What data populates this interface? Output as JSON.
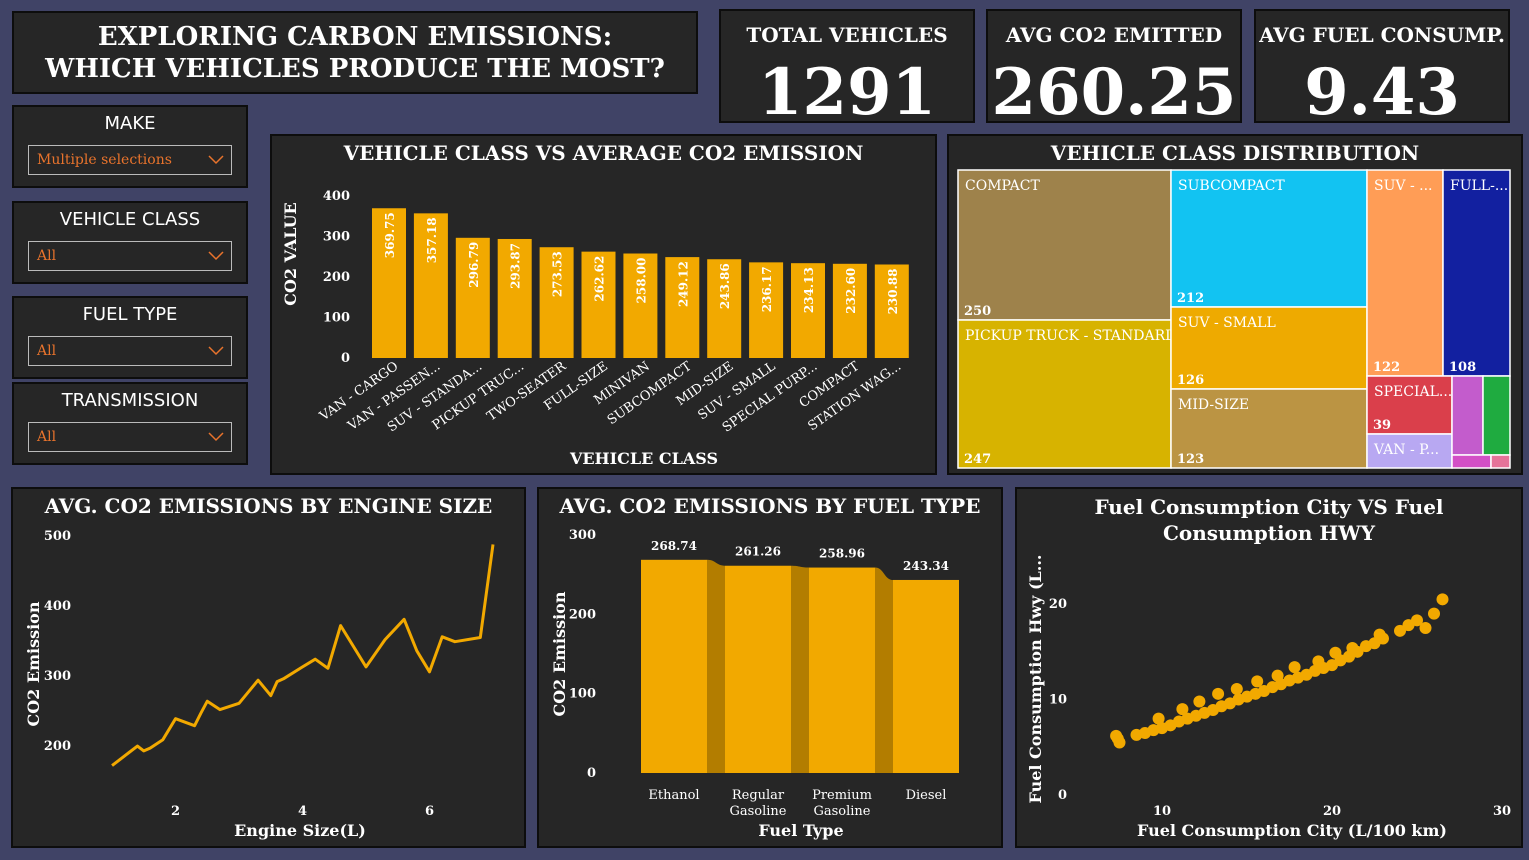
{
  "title": "EXPLORING CARBON EMISSIONS: WHICH VEHICLES PRODUCE THE MOST?",
  "kpis": {
    "total_vehicles": {
      "label": "TOTAL VEHICLES",
      "value": "1291"
    },
    "avg_co2": {
      "label": "AVG CO2 EMITTED",
      "value": "260.25"
    },
    "avg_fuel": {
      "label": "AVG FUEL CONSUMP.",
      "value": "9.43"
    }
  },
  "slicers": {
    "make": {
      "label": "MAKE",
      "value": "Multiple selections"
    },
    "vehicle_class": {
      "label": "VEHICLE CLASS",
      "value": "All"
    },
    "fuel_type": {
      "label": "FUEL TYPE",
      "value": "All"
    },
    "transmission": {
      "label": "TRANSMISSION",
      "value": "All"
    }
  },
  "colors": {
    "accent": "#f2a900",
    "panel": "#262626",
    "background": "#404366",
    "slicer_value": "#e8732c"
  },
  "chart_data": [
    {
      "type": "bar",
      "title": "VEHICLE CLASS VS AVERAGE CO2 EMISSION",
      "xlabel": "VEHICLE CLASS",
      "ylabel": "CO2 VALUE",
      "ylim": [
        0,
        400
      ],
      "yticks": [
        0,
        100,
        200,
        300,
        400
      ],
      "categories": [
        "VAN - CARGO",
        "VAN - PASSEN...",
        "SUV - STANDA...",
        "PICKUP TRUC...",
        "TWO-SEATER",
        "FULL-SIZE",
        "MINIVAN",
        "SUBCOMPACT",
        "MID-SIZE",
        "SUV - SMALL",
        "SPECIAL PURP...",
        "COMPACT",
        "STATION WAG..."
      ],
      "values": [
        369.75,
        357.18,
        296.79,
        293.87,
        273.53,
        262.62,
        258.0,
        249.12,
        243.86,
        236.17,
        234.13,
        232.6,
        230.88
      ],
      "labels": [
        "369.75",
        "357.18",
        "296.79",
        "293.87",
        "273.53",
        "262.62",
        "258.00",
        "249.12",
        "243.86",
        "236.17",
        "234.13",
        "232.60",
        "230.88"
      ]
    },
    {
      "type": "treemap",
      "title": "VEHICLE CLASS DISTRIBUTION",
      "items": [
        {
          "name": "COMPACT",
          "value": 250,
          "value_label": "250",
          "color": "#9e824b"
        },
        {
          "name": "PICKUP TRUCK - STANDARD",
          "value": 247,
          "value_label": "247",
          "color": "#d7b300"
        },
        {
          "name": "SUBCOMPACT",
          "value": 212,
          "value_label": "212",
          "color": "#12c3f2"
        },
        {
          "name": "SUV - SMALL",
          "value": 126,
          "value_label": "126",
          "color": "#eeaa00"
        },
        {
          "name": "MID-SIZE",
          "value": 123,
          "value_label": "123",
          "color": "#bb9443"
        },
        {
          "name": "SUV - ...",
          "value": 122,
          "value_label": "122",
          "color": "#ff9d56"
        },
        {
          "name": "FULL-...",
          "value": 108,
          "value_label": "108",
          "color": "#1220a0"
        },
        {
          "name": "SPECIAL...",
          "value": 39,
          "value_label": "39",
          "color": "#da3f4b"
        },
        {
          "name": "VAN - P...",
          "value": 0,
          "value_label": "",
          "color": "#b8a8f2"
        },
        {
          "name": "",
          "value": 0,
          "value_label": "",
          "color": "#c35ccc"
        },
        {
          "name": "",
          "value": 0,
          "value_label": "",
          "color": "#1fab40"
        },
        {
          "name": "",
          "value": 0,
          "value_label": "",
          "color": "#d34fc6"
        },
        {
          "name": "",
          "value": 0,
          "value_label": "",
          "color": "#e57399"
        }
      ]
    },
    {
      "type": "line",
      "title": "AVG. CO2 EMISSIONS BY ENGINE SIZE",
      "xlabel": "Engine Size(L)",
      "ylabel": "CO2 Emission",
      "xlim": [
        0.7,
        7.0
      ],
      "ylim": [
        150,
        500
      ],
      "xticks": [
        2,
        4,
        6
      ],
      "yticks": [
        200,
        300,
        400,
        500
      ],
      "x": [
        1.0,
        1.2,
        1.4,
        1.5,
        1.6,
        1.8,
        2.0,
        2.3,
        2.4,
        2.5,
        2.7,
        3.0,
        3.3,
        3.5,
        3.6,
        3.7,
        4.0,
        4.2,
        4.4,
        4.6,
        5.0,
        5.3,
        5.6,
        5.8,
        6.0,
        6.2,
        6.4,
        6.8,
        7.0
      ],
      "y": [
        172,
        186,
        200,
        193,
        197,
        209,
        239,
        229,
        247,
        264,
        252,
        261,
        294,
        272,
        292,
        296,
        313,
        324,
        311,
        372,
        313,
        352,
        381,
        336,
        306,
        356,
        349,
        355,
        488
      ]
    },
    {
      "type": "bar",
      "title": "AVG. CO2 EMISSIONS BY FUEL TYPE",
      "xlabel": "Fuel Type",
      "ylabel": "CO2 Emission",
      "ylim": [
        0,
        300
      ],
      "yticks": [
        0,
        100,
        200,
        300
      ],
      "categories": [
        "Ethanol",
        "Regular Gasoline",
        "Premium Gasoline",
        "Diesel"
      ],
      "values": [
        268.74,
        261.26,
        258.96,
        243.34
      ],
      "labels": [
        "268.74",
        "261.26",
        "258.96",
        "243.34"
      ]
    },
    {
      "type": "scatter",
      "title": "Fuel Consumption City VS Fuel Consumption HWY",
      "xlabel": "Fuel Consumption City (L/100 km)",
      "ylabel": "Fuel Consumption Hwy (L...",
      "xlim": [
        5,
        30
      ],
      "ylim": [
        0,
        22
      ],
      "xticks": [
        10,
        20,
        30
      ],
      "yticks": [
        0,
        10,
        20
      ],
      "x": [
        7.4,
        7.5,
        8.5,
        9,
        9.5,
        10,
        10.5,
        11,
        11.5,
        12,
        12.5,
        13,
        13.5,
        14,
        14.5,
        15,
        15.5,
        16,
        16.5,
        17,
        17.5,
        18,
        18.5,
        19,
        19.5,
        20,
        20.5,
        21,
        21.5,
        22,
        22.5,
        23,
        24,
        24.5,
        25,
        25.5,
        26,
        26.5,
        7.3,
        9.8,
        11.2,
        12.2,
        13.3,
        14.4,
        15.6,
        16.8,
        17.8,
        19.2,
        20.2,
        21.2,
        22.8
      ],
      "y": [
        5.9,
        5.5,
        6.3,
        6.5,
        6.8,
        7.0,
        7.3,
        7.7,
        8.0,
        8.3,
        8.6,
        8.9,
        9.3,
        9.6,
        10.0,
        10.3,
        10.6,
        10.9,
        11.3,
        11.6,
        12.0,
        12.3,
        12.6,
        13.0,
        13.3,
        13.6,
        14.1,
        14.5,
        15.0,
        15.6,
        15.9,
        16.4,
        17.2,
        17.8,
        18.3,
        17.5,
        19.0,
        20.5,
        6.2,
        8.0,
        9.0,
        9.8,
        10.6,
        11.1,
        11.9,
        12.5,
        13.4,
        14.0,
        14.9,
        15.4,
        16.8
      ]
    }
  ]
}
